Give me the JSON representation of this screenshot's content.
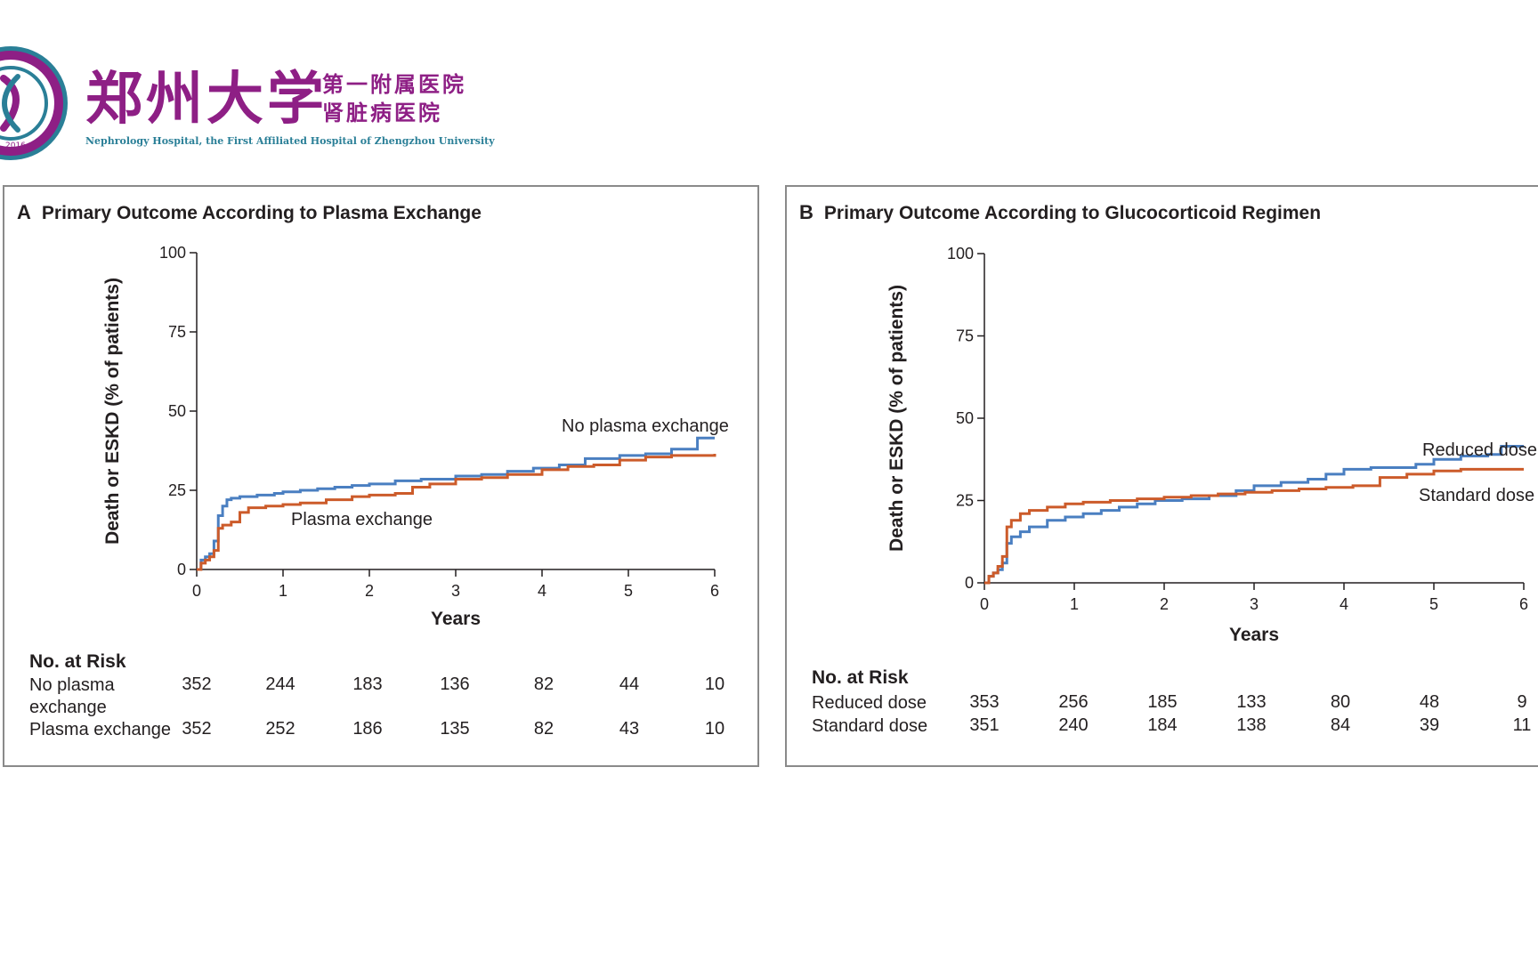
{
  "logo": {
    "name_cn": "郑州大学",
    "sub_cn_line1": "第一附属医院",
    "sub_cn_line2": "肾脏病医院",
    "name_en": "Nephrology Hospital, the First Affiliated Hospital of Zhengzhou University",
    "seal_text": "郑州大学第一附属医院肾脏病医院",
    "seal_year": "2016",
    "colors": {
      "purple": "#8e1f85",
      "teal": "#2a7f97"
    }
  },
  "chart_data": [
    {
      "type": "line",
      "panel_letter": "A",
      "title": "Primary Outcome According to Plasma Exchange",
      "xlabel": "Years",
      "ylabel": "Death or ESKD (% of patients)",
      "xlim": [
        0,
        6
      ],
      "ylim": [
        0,
        100
      ],
      "xticks": [
        "0",
        "1",
        "2",
        "3",
        "4",
        "5",
        "6"
      ],
      "yticks": [
        "0",
        "25",
        "50",
        "75",
        "100"
      ],
      "series": [
        {
          "name": "No plasma exchange",
          "color": "#4a7fc1",
          "x": [
            0,
            0.05,
            0.1,
            0.15,
            0.2,
            0.25,
            0.3,
            0.35,
            0.4,
            0.5,
            0.7,
            0.9,
            1.0,
            1.2,
            1.4,
            1.6,
            1.8,
            2.0,
            2.3,
            2.6,
            3.0,
            3.3,
            3.6,
            3.9,
            4.2,
            4.5,
            4.9,
            5.2,
            5.5,
            5.65,
            5.8,
            6.0
          ],
          "values": [
            0,
            3,
            4,
            5,
            9,
            17,
            20,
            22,
            22.5,
            23,
            23.5,
            24,
            24.5,
            25,
            25.5,
            26,
            26.5,
            27,
            28,
            28.5,
            29.5,
            30,
            31,
            32,
            33,
            35,
            36,
            36.5,
            38,
            38,
            41.5,
            41.5
          ]
        },
        {
          "name": "Plasma exchange",
          "color": "#cc5b2a",
          "x": [
            0,
            0.05,
            0.1,
            0.15,
            0.2,
            0.25,
            0.3,
            0.4,
            0.5,
            0.6,
            0.8,
            1.0,
            1.2,
            1.5,
            1.8,
            2.0,
            2.3,
            2.5,
            2.7,
            3.0,
            3.3,
            3.6,
            4.0,
            4.3,
            4.6,
            4.9,
            5.2,
            5.5,
            6.0
          ],
          "values": [
            0,
            2,
            3,
            4,
            6,
            13,
            14,
            15,
            18,
            19.5,
            20,
            20.5,
            21,
            22,
            23,
            23.5,
            24,
            26,
            27,
            28.5,
            29,
            30,
            31.5,
            32.5,
            33,
            34.5,
            35.5,
            36,
            36.5
          ]
        }
      ],
      "risk_table": {
        "title": "No. at Risk",
        "rows": [
          {
            "label": "No plasma exchange",
            "values": [
              "352",
              "244",
              "183",
              "136",
              "82",
              "44",
              "10"
            ]
          },
          {
            "label": "Plasma exchange",
            "values": [
              "352",
              "252",
              "186",
              "135",
              "82",
              "43",
              "10"
            ]
          }
        ]
      }
    },
    {
      "type": "line",
      "panel_letter": "B",
      "title": "Primary Outcome According to Glucocorticoid Regimen",
      "xlabel": "Years",
      "ylabel": "Death or ESKD (% of patients)",
      "xlim": [
        0,
        6
      ],
      "ylim": [
        0,
        100
      ],
      "xticks": [
        "0",
        "1",
        "2",
        "3",
        "4",
        "5",
        "6"
      ],
      "yticks": [
        "0",
        "25",
        "50",
        "75",
        "100"
      ],
      "series": [
        {
          "name": "Reduced dose",
          "color": "#4a7fc1",
          "x": [
            0,
            0.05,
            0.1,
            0.15,
            0.2,
            0.25,
            0.3,
            0.4,
            0.5,
            0.7,
            0.9,
            1.1,
            1.3,
            1.5,
            1.7,
            1.9,
            2.2,
            2.5,
            2.8,
            3.0,
            3.3,
            3.6,
            3.8,
            4.0,
            4.3,
            4.6,
            4.8,
            5.0,
            5.3,
            5.6,
            5.75,
            6.0
          ],
          "values": [
            0,
            2,
            3,
            4,
            6,
            12,
            14,
            15.5,
            17,
            19,
            20,
            21,
            22,
            23,
            24,
            25,
            25.5,
            26.5,
            28,
            29.5,
            30.5,
            31.5,
            33,
            34.5,
            35,
            35,
            36,
            37.5,
            38.5,
            39,
            41.5,
            41.5
          ]
        },
        {
          "name": "Standard dose",
          "color": "#cc5b2a",
          "x": [
            0,
            0.05,
            0.1,
            0.15,
            0.2,
            0.25,
            0.3,
            0.4,
            0.5,
            0.7,
            0.9,
            1.1,
            1.4,
            1.7,
            2.0,
            2.3,
            2.6,
            2.9,
            3.2,
            3.5,
            3.8,
            4.1,
            4.4,
            4.7,
            5.0,
            5.3,
            6.0
          ],
          "values": [
            0,
            2,
            3,
            5,
            8,
            17,
            19,
            21,
            22,
            23,
            24,
            24.5,
            25,
            25.5,
            26,
            26.5,
            27,
            27.5,
            28,
            28.5,
            29,
            29.5,
            32,
            33,
            34,
            34.5,
            34.5
          ]
        }
      ],
      "risk_table": {
        "title": "No. at Risk",
        "rows": [
          {
            "label": "Reduced dose",
            "values": [
              "353",
              "256",
              "185",
              "133",
              "80",
              "48",
              "9"
            ]
          },
          {
            "label": "Standard dose",
            "values": [
              "351",
              "240",
              "184",
              "138",
              "84",
              "39",
              "11"
            ]
          }
        ]
      }
    }
  ]
}
